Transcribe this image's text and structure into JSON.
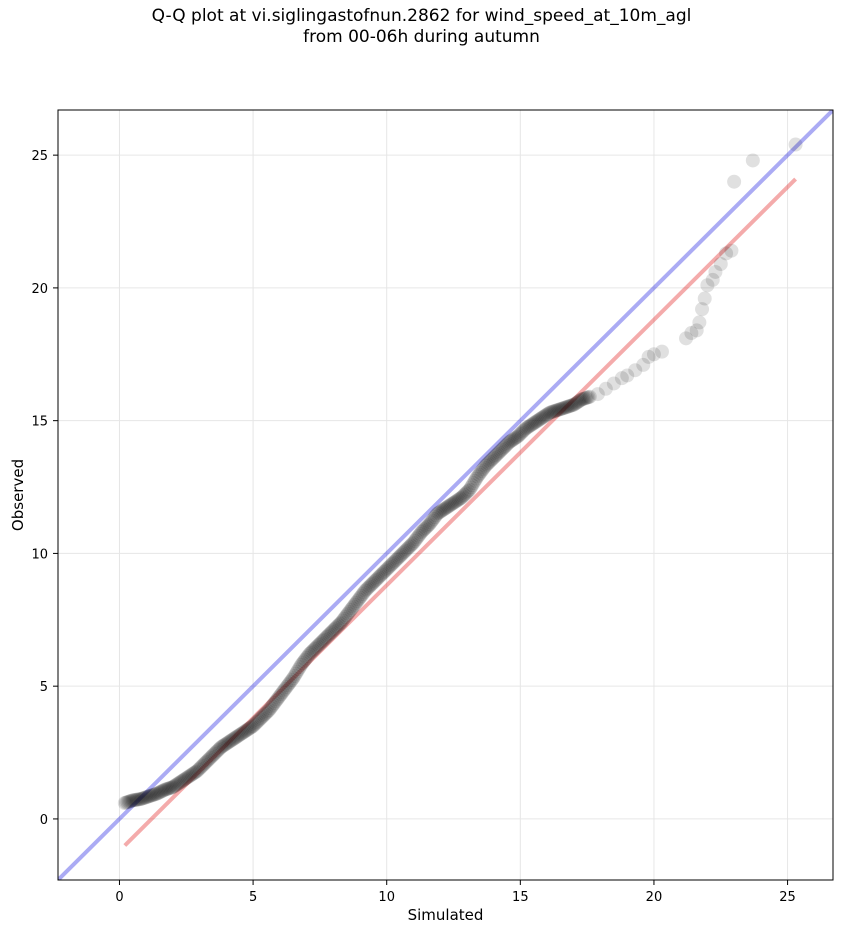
{
  "chart_data": {
    "type": "scatter",
    "title": "Q-Q plot at vi.siglingastofnun.2862 for wind_speed_at_10m_agl",
    "subtitle": "from 00-06h during autumn",
    "xlabel": "Simulated",
    "ylabel": "Observed",
    "xlim": [
      -2.3,
      26.7
    ],
    "ylim": [
      -2.3,
      26.7
    ],
    "xticks": [
      "0",
      "5",
      "10",
      "15",
      "20",
      "25"
    ],
    "yticks": [
      "0",
      "5",
      "10",
      "15",
      "20",
      "25"
    ],
    "grid": true,
    "colors": {
      "points": "#000000",
      "identity_line": "#0000dd",
      "fit_line": "#dd0000",
      "grid": "#e6e6e6"
    },
    "identity_line": {
      "x": [
        -2.3,
        26.7
      ],
      "y": [
        -2.3,
        26.7
      ]
    },
    "fit_line": {
      "x": [
        0.2,
        25.3
      ],
      "y": [
        -1.0,
        24.1
      ]
    },
    "quantiles": {
      "x": [
        0.2,
        0.5,
        0.8,
        1.1,
        1.4,
        1.7,
        2.0,
        2.3,
        2.6,
        2.9,
        3.2,
        3.5,
        3.8,
        4.1,
        4.4,
        4.7,
        5.0,
        5.3,
        5.6,
        5.9,
        6.2,
        6.5,
        6.8,
        7.1,
        7.4,
        7.7,
        8.0,
        8.3,
        8.6,
        8.9,
        9.2,
        9.5,
        9.8,
        10.1,
        10.4,
        10.7,
        11.0,
        11.3,
        11.6,
        11.9,
        12.2,
        12.5,
        12.8,
        13.1,
        13.4,
        13.7,
        14.0,
        14.3,
        14.6,
        14.9,
        15.2,
        15.5,
        15.8,
        16.1,
        16.4,
        16.7,
        17.0,
        17.3,
        17.6,
        17.9,
        18.2,
        18.5,
        18.8,
        19.0,
        19.3,
        19.6,
        19.8,
        20.0,
        20.3,
        21.2,
        21.4,
        21.6,
        21.7,
        21.8,
        21.9,
        22.0,
        22.2,
        22.3,
        22.5,
        22.7,
        22.9,
        23.0,
        23.7,
        25.3
      ],
      "y": [
        0.6,
        0.7,
        0.75,
        0.85,
        0.95,
        1.1,
        1.2,
        1.4,
        1.6,
        1.8,
        2.1,
        2.4,
        2.7,
        2.9,
        3.1,
        3.3,
        3.5,
        3.8,
        4.1,
        4.5,
        4.9,
        5.3,
        5.8,
        6.2,
        6.5,
        6.8,
        7.1,
        7.4,
        7.8,
        8.2,
        8.6,
        8.9,
        9.2,
        9.5,
        9.8,
        10.1,
        10.4,
        10.8,
        11.1,
        11.5,
        11.7,
        11.9,
        12.1,
        12.4,
        12.9,
        13.3,
        13.6,
        13.9,
        14.2,
        14.4,
        14.7,
        14.9,
        15.1,
        15.3,
        15.4,
        15.5,
        15.6,
        15.8,
        15.9,
        16.0,
        16.2,
        16.4,
        16.6,
        16.7,
        16.9,
        17.1,
        17.4,
        17.5,
        17.6,
        18.1,
        18.3,
        18.4,
        18.7,
        19.2,
        19.6,
        20.1,
        20.3,
        20.6,
        20.9,
        21.3,
        21.4,
        24.0,
        24.8,
        25.4
      ]
    }
  }
}
